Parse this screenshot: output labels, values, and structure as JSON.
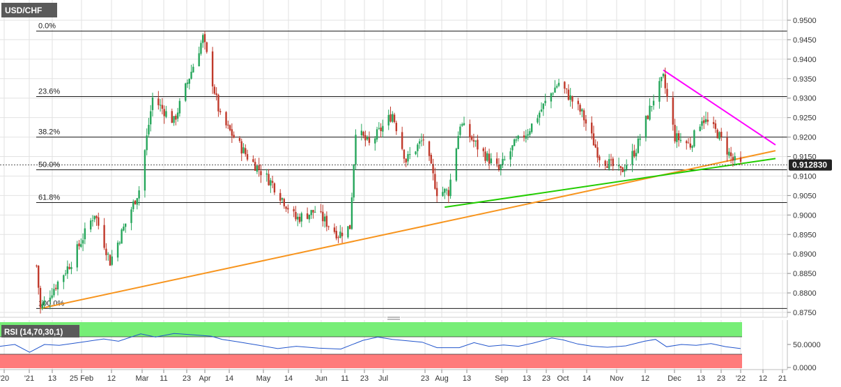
{
  "symbol": "USD/CHF",
  "price_label": "0.912830",
  "colors": {
    "bull": "#26a65b",
    "bear": "#c0392b",
    "orange_line": "#f7941d",
    "green_line": "#22cc00",
    "magenta_line": "#ff00ff",
    "rsi_line": "#2255cc",
    "rsi_overbought_fill": "#77ee77",
    "rsi_oversold_fill": "#ff7b7b",
    "price_tag": "#222222",
    "grid": "#e2e2e2"
  },
  "chart_data": {
    "type": "candlestick",
    "title": "USD/CHF",
    "grid": true,
    "x_tick_labels": [
      "'20",
      "'21",
      "13",
      "25 Feb",
      "12",
      "Mar",
      "11",
      "23",
      "Apr",
      "14",
      "May",
      "14",
      "Jun",
      "11",
      "23",
      "Jul",
      "23",
      "Aug",
      "13",
      "Sep",
      "13",
      "23",
      "Oct",
      "14",
      "Nov",
      "12",
      "Dec",
      "13",
      "23",
      "'22",
      "12",
      "21"
    ],
    "y_tick_labels": [
      "0.9500",
      "0.9450",
      "0.9400",
      "0.9350",
      "0.9300",
      "0.9250",
      "0.9200",
      "0.9150",
      "0.9100",
      "0.9050",
      "0.9000",
      "0.8950",
      "0.8900",
      "0.8850",
      "0.8800",
      "0.8750"
    ],
    "y_range": [
      0.8745,
      0.953
    ],
    "last_price": 0.91283,
    "fibonacci_levels": [
      {
        "label": "0.0%",
        "value": 0.9472
      },
      {
        "label": "23.6%",
        "value": 0.9304
      },
      {
        "label": "38.2%",
        "value": 0.92
      },
      {
        "label": "50.0%",
        "value": 0.9116
      },
      {
        "label": "61.8%",
        "value": 0.9032
      },
      {
        "label": "100.0%",
        "value": 0.876
      }
    ],
    "trendlines": [
      {
        "color": "orange",
        "from": [
          "2021-01-06",
          0.876
        ],
        "to": [
          "2022-01-21",
          0.9165
        ]
      },
      {
        "color": "green",
        "from": [
          "2021-08-03",
          0.902
        ],
        "to": [
          "2022-01-21",
          0.9145
        ]
      },
      {
        "color": "magenta",
        "from": [
          "2021-11-24",
          0.9372
        ],
        "to": [
          "2022-01-21",
          0.918
        ]
      }
    ],
    "swing_points": [
      {
        "date": "2021-01-04",
        "close": 0.887
      },
      {
        "date": "2021-01-06",
        "close": 0.876
      },
      {
        "date": "2021-01-22",
        "close": 0.888
      },
      {
        "date": "2021-02-03",
        "close": 0.9005
      },
      {
        "date": "2021-02-11",
        "close": 0.888
      },
      {
        "date": "2021-02-26",
        "close": 0.9065
      },
      {
        "date": "2021-03-05",
        "close": 0.93
      },
      {
        "date": "2021-03-16",
        "close": 0.924
      },
      {
        "date": "2021-03-31",
        "close": 0.9455
      },
      {
        "date": "2021-04-09",
        "close": 0.925
      },
      {
        "date": "2021-04-23",
        "close": 0.915
      },
      {
        "date": "2021-05-06",
        "close": 0.908
      },
      {
        "date": "2021-05-18",
        "close": 0.899
      },
      {
        "date": "2021-05-28",
        "close": 0.901
      },
      {
        "date": "2021-06-09",
        "close": 0.895
      },
      {
        "date": "2021-06-15",
        "close": 0.897
      },
      {
        "date": "2021-06-18",
        "close": 0.922
      },
      {
        "date": "2021-06-25",
        "close": 0.918
      },
      {
        "date": "2021-07-07",
        "close": 0.926
      },
      {
        "date": "2021-07-14",
        "close": 0.914
      },
      {
        "date": "2021-07-23",
        "close": 0.9195
      },
      {
        "date": "2021-07-30",
        "close": 0.906
      },
      {
        "date": "2021-08-05",
        "close": 0.906
      },
      {
        "date": "2021-08-11",
        "close": 0.9235
      },
      {
        "date": "2021-08-20",
        "close": 0.9175
      },
      {
        "date": "2021-08-31",
        "close": 0.9115
      },
      {
        "date": "2021-09-08",
        "close": 0.918
      },
      {
        "date": "2021-09-15",
        "close": 0.9215
      },
      {
        "date": "2021-09-28",
        "close": 0.932
      },
      {
        "date": "2021-10-01",
        "close": 0.934
      },
      {
        "date": "2021-10-13",
        "close": 0.926
      },
      {
        "date": "2021-10-22",
        "close": 0.915
      },
      {
        "date": "2021-11-02",
        "close": 0.911
      },
      {
        "date": "2021-11-10",
        "close": 0.917
      },
      {
        "date": "2021-11-19",
        "close": 0.93
      },
      {
        "date": "2021-11-24",
        "close": 0.935
      },
      {
        "date": "2021-11-30",
        "close": 0.92
      },
      {
        "date": "2021-12-08",
        "close": 0.918
      },
      {
        "date": "2021-12-14",
        "close": 0.925
      },
      {
        "date": "2021-12-22",
        "close": 0.921
      },
      {
        "date": "2021-12-30",
        "close": 0.914
      },
      {
        "date": "2022-01-03",
        "close": 0.9128
      }
    ]
  },
  "rsi_panel": {
    "label": "RSI (14,70,30,1)",
    "y_tick_labels": [
      "50.0000",
      "0.0000"
    ],
    "overbought": 70,
    "oversold": 30,
    "points": [
      [
        0.0,
        46
      ],
      [
        0.02,
        50
      ],
      [
        0.04,
        33
      ],
      [
        0.06,
        50
      ],
      [
        0.08,
        48
      ],
      [
        0.11,
        55
      ],
      [
        0.14,
        62
      ],
      [
        0.16,
        57
      ],
      [
        0.19,
        73
      ],
      [
        0.21,
        66
      ],
      [
        0.235,
        74
      ],
      [
        0.26,
        71
      ],
      [
        0.285,
        68
      ],
      [
        0.3,
        61
      ],
      [
        0.32,
        56
      ],
      [
        0.35,
        48
      ],
      [
        0.375,
        41
      ],
      [
        0.4,
        46
      ],
      [
        0.43,
        42
      ],
      [
        0.46,
        40
      ],
      [
        0.49,
        59
      ],
      [
        0.51,
        66
      ],
      [
        0.53,
        61
      ],
      [
        0.55,
        58
      ],
      [
        0.57,
        55
      ],
      [
        0.59,
        43
      ],
      [
        0.62,
        43
      ],
      [
        0.64,
        54
      ],
      [
        0.66,
        46
      ],
      [
        0.68,
        49
      ],
      [
        0.7,
        46
      ],
      [
        0.72,
        53
      ],
      [
        0.745,
        64
      ],
      [
        0.76,
        60
      ],
      [
        0.78,
        51
      ],
      [
        0.8,
        46
      ],
      [
        0.82,
        44
      ],
      [
        0.845,
        47
      ],
      [
        0.87,
        57
      ],
      [
        0.885,
        61
      ],
      [
        0.9,
        45
      ],
      [
        0.92,
        50
      ],
      [
        0.94,
        48
      ],
      [
        0.96,
        52
      ],
      [
        0.98,
        45
      ],
      [
        1.0,
        41
      ]
    ]
  }
}
